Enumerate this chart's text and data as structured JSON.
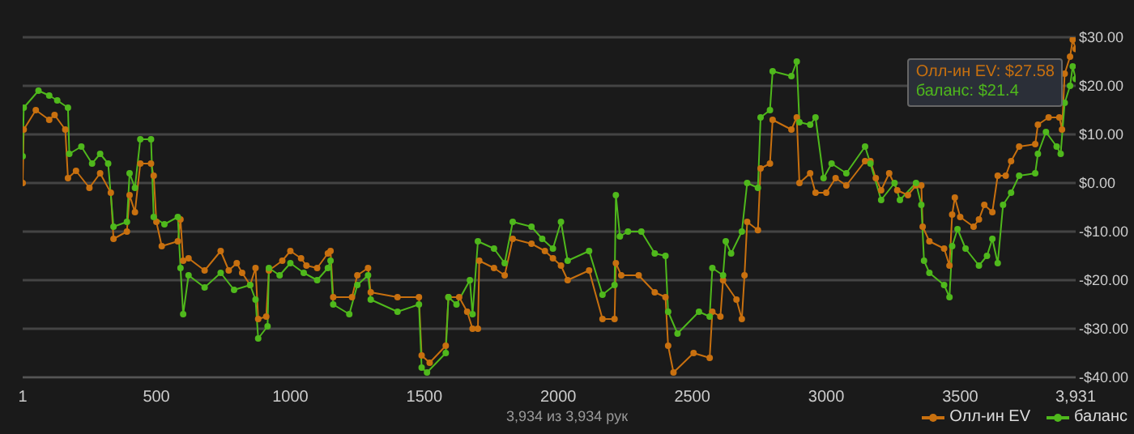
{
  "chart_data": {
    "type": "line",
    "marker": "circle",
    "line_style": "solid",
    "grid": "y",
    "legend": "bottom right",
    "xlim": [
      1,
      3931
    ],
    "xticks": [
      1,
      500,
      1000,
      1500,
      2000,
      2500,
      3000,
      3500,
      {
        "value": 3931,
        "label": "3,931"
      }
    ],
    "ylim": [
      -40,
      30
    ],
    "yticks": [
      {
        "value": -40,
        "label": "-$40.00"
      },
      {
        "value": -30,
        "label": "-$30.00"
      },
      {
        "value": -20,
        "label": "-$20.00"
      },
      {
        "value": -10,
        "label": "-$10.00"
      },
      {
        "value": 0,
        "label": "$0.00"
      },
      {
        "value": 10,
        "label": "$10.00"
      },
      {
        "value": 20,
        "label": "$20.00"
      },
      {
        "value": 30,
        "label": "$30.00"
      }
    ],
    "annotations": [
      "3,934 из 3,934 рук",
      "Олл-ин EV: $27.58",
      "баланс: $21.4"
    ],
    "series": [
      {
        "name": "Олл-ин EV",
        "color": "#c8700f",
        "x": [
          1,
          5,
          50,
          100,
          120,
          160,
          170,
          200,
          250,
          290,
          330,
          340,
          390,
          400,
          420,
          440,
          480,
          490,
          500,
          520,
          580,
          590,
          600,
          620,
          680,
          740,
          770,
          800,
          820,
          850,
          870,
          880,
          910,
          920,
          970,
          1000,
          1040,
          1060,
          1100,
          1140,
          1150,
          1160,
          1230,
          1250,
          1290,
          1300,
          1400,
          1480,
          1490,
          1520,
          1580,
          1590,
          1630,
          1660,
          1680,
          1700,
          1705,
          1760,
          1800,
          1830,
          1900,
          1950,
          1980,
          2010,
          2035,
          2115,
          2165,
          2210,
          2215,
          2235,
          2300,
          2360,
          2400,
          2410,
          2430,
          2505,
          2565,
          2575,
          2605,
          2615,
          2665,
          2685,
          2695,
          2705,
          2745,
          2755,
          2790,
          2800,
          2870,
          2890,
          2900,
          2940,
          2960,
          3000,
          3035,
          3075,
          3145,
          3165,
          3185,
          3205,
          3235,
          3265,
          3305,
          3335,
          3355,
          3360,
          3385,
          3440,
          3460,
          3470,
          3480,
          3500,
          3550,
          3570,
          3590,
          3620,
          3640,
          3670,
          3690,
          3720,
          3780,
          3790,
          3830,
          3870,
          3880,
          3890,
          3910,
          3920,
          3931
        ],
        "values": [
          0,
          11,
          15,
          13,
          14,
          11,
          1,
          2.5,
          -1,
          2,
          -2,
          -11.5,
          -10,
          -2.5,
          -6,
          4,
          4,
          1.5,
          -8,
          -13,
          -12,
          -7.5,
          -16,
          -15.5,
          -18,
          -14,
          -18,
          -16.5,
          -18.5,
          -21,
          -17.5,
          -28,
          -27.5,
          -18,
          -16,
          -14,
          -15.5,
          -17,
          -17.5,
          -14.5,
          -14,
          -23.5,
          -23.5,
          -19,
          -17.5,
          -22.5,
          -23.5,
          -23.5,
          -35.5,
          -37,
          -33.5,
          -23.5,
          -23.5,
          -26.5,
          -30,
          -30,
          -16,
          -17.5,
          -19,
          -11.5,
          -12.5,
          -14,
          -15.5,
          -17,
          -20,
          -18,
          -28,
          -28,
          -16.5,
          -19,
          -19,
          -22.5,
          -23.5,
          -33.5,
          -39,
          -35,
          -36,
          -26.5,
          -27.5,
          -20,
          -24,
          -28,
          -19,
          -8,
          -9.7,
          3,
          4,
          13,
          11,
          13.5,
          0,
          2,
          -2,
          -2,
          1,
          -0.5,
          4.5,
          4.5,
          1,
          -1.5,
          2,
          -1.5,
          -2.5,
          -0.5,
          -0.5,
          -9,
          -12,
          -13.5,
          -17,
          -6.5,
          -3,
          -7,
          -9,
          -7.5,
          -4.5,
          -6,
          1.5,
          1.5,
          4.5,
          7.5,
          8,
          12,
          13.5,
          13.5,
          11,
          22.5,
          26,
          29.5,
          27.6
        ]
      },
      {
        "name": "баланс",
        "color": "#4fb81c",
        "x": [
          1,
          5,
          60,
          100,
          130,
          170,
          175,
          220,
          260,
          290,
          320,
          340,
          390,
          400,
          420,
          440,
          480,
          490,
          530,
          580,
          590,
          600,
          620,
          680,
          740,
          790,
          850,
          870,
          880,
          915,
          920,
          960,
          1000,
          1050,
          1100,
          1140,
          1150,
          1160,
          1220,
          1250,
          1290,
          1300,
          1400,
          1480,
          1490,
          1510,
          1580,
          1590,
          1620,
          1670,
          1680,
          1700,
          1760,
          1800,
          1830,
          1900,
          1940,
          1980,
          2010,
          2035,
          2115,
          2165,
          2210,
          2215,
          2230,
          2260,
          2310,
          2360,
          2400,
          2410,
          2445,
          2525,
          2565,
          2575,
          2615,
          2625,
          2645,
          2685,
          2705,
          2745,
          2755,
          2790,
          2800,
          2870,
          2890,
          2900,
          2940,
          2960,
          2990,
          3020,
          3075,
          3145,
          3165,
          3205,
          3255,
          3275,
          3335,
          3355,
          3365,
          3385,
          3440,
          3460,
          3470,
          3490,
          3520,
          3570,
          3600,
          3620,
          3640,
          3660,
          3690,
          3720,
          3780,
          3790,
          3820,
          3860,
          3875,
          3890,
          3910,
          3920,
          3931
        ],
        "values": [
          5.5,
          15.5,
          19,
          18,
          17,
          15.5,
          6,
          7.5,
          4,
          6,
          4,
          -9,
          -8,
          2,
          -1,
          9,
          9,
          -7,
          -8.5,
          -7,
          -17.5,
          -27,
          -19,
          -21.5,
          -18.5,
          -22,
          -21,
          -24,
          -32,
          -29.5,
          -17.5,
          -19,
          -16.5,
          -18.5,
          -20,
          -17.5,
          -16,
          -25,
          -27,
          -21,
          -19,
          -24,
          -26.5,
          -25,
          -38,
          -39,
          -35,
          -23.5,
          -25,
          -20,
          -27,
          -12,
          -13.5,
          -16.5,
          -8,
          -9,
          -11.5,
          -13.5,
          -8,
          -16,
          -14,
          -23,
          -21,
          -2.5,
          -11,
          -10,
          -10,
          -14.5,
          -15,
          -26.5,
          -31,
          -26.5,
          -27.5,
          -17.5,
          -19,
          -12,
          -14.5,
          -10,
          0,
          -1,
          13.5,
          15,
          23,
          22,
          25,
          12.5,
          12,
          13.5,
          1,
          4,
          2,
          7.5,
          4,
          -3.5,
          0,
          -3.5,
          0,
          -4.5,
          -16,
          -18.5,
          -21,
          -23.5,
          -13,
          -9.5,
          -13.5,
          -17,
          -15,
          -11.5,
          -16.5,
          -4.5,
          -2,
          1.5,
          2,
          6,
          10.5,
          7.5,
          6,
          16.5,
          20,
          24,
          21.4
        ]
      }
    ]
  }
}
